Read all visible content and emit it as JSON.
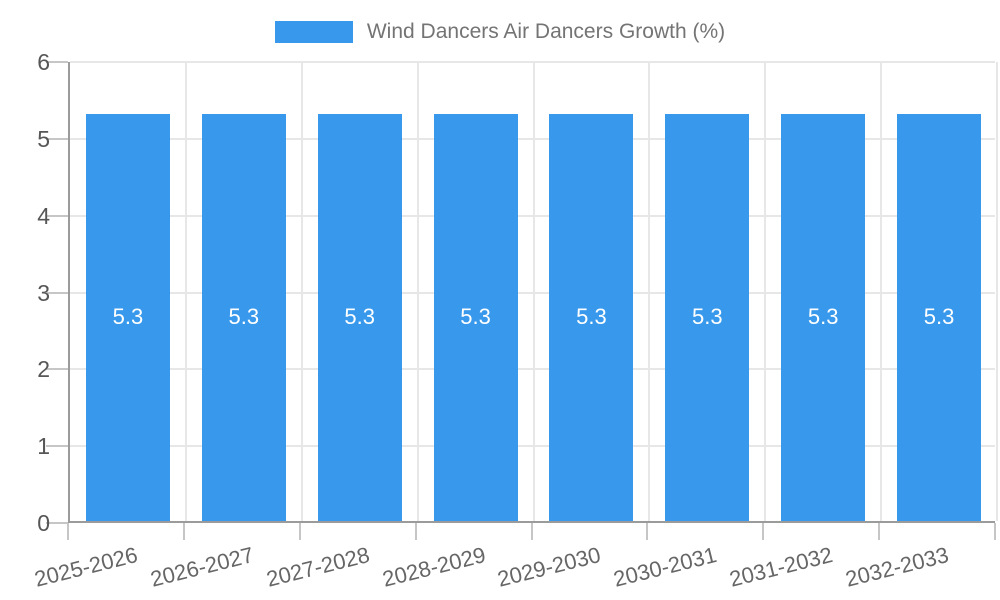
{
  "legend": {
    "label": "Wind Dancers Air Dancers Growth (%)"
  },
  "chart_data": {
    "type": "bar",
    "title": "Wind Dancers Air Dancers Growth (%)",
    "categories": [
      "2025-2026",
      "2026-2027",
      "2027-2028",
      "2028-2029",
      "2029-2030",
      "2030-2031",
      "2031-2032",
      "2032-2033"
    ],
    "series": [
      {
        "name": "Wind Dancers Air Dancers Growth (%)",
        "values": [
          5.3,
          5.3,
          5.3,
          5.3,
          5.3,
          5.3,
          5.3,
          5.3
        ]
      }
    ],
    "value_labels": [
      "5.3",
      "5.3",
      "5.3",
      "5.3",
      "5.3",
      "5.3",
      "5.3",
      "5.3"
    ],
    "xlabel": "",
    "ylabel": "",
    "ylim": [
      0,
      6
    ],
    "yticks": [
      0,
      1,
      2,
      3,
      4,
      5,
      6
    ],
    "grid": true,
    "legend_position": "top-center",
    "x_label_rotation_deg": -14,
    "colors": {
      "bar": "#3899EC",
      "grid": "#e7e7e7",
      "axis_line": "#9b9b9b",
      "tick": "#c6c6c6",
      "y_axis_text": "#565656",
      "x_axis_text": "#666666",
      "value_text": "#ffffff",
      "title_text": "#747474"
    }
  }
}
